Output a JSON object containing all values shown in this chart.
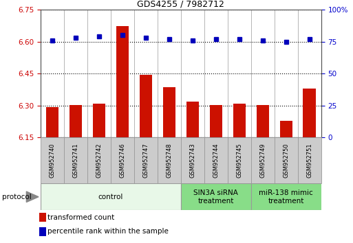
{
  "title": "GDS4255 / 7982712",
  "samples": [
    "GSM952740",
    "GSM952741",
    "GSM952742",
    "GSM952746",
    "GSM952747",
    "GSM952748",
    "GSM952743",
    "GSM952744",
    "GSM952745",
    "GSM952749",
    "GSM952750",
    "GSM952751"
  ],
  "transformed_counts": [
    6.293,
    6.303,
    6.308,
    6.672,
    6.443,
    6.385,
    6.318,
    6.303,
    6.308,
    6.303,
    6.228,
    6.378
  ],
  "percentile_ranks": [
    76,
    78,
    79,
    80,
    78,
    77,
    76,
    77,
    77,
    76,
    75,
    77
  ],
  "groups": [
    {
      "label": "control",
      "start": 0,
      "end": 6,
      "color": "#e8f8e8",
      "border": "#999999"
    },
    {
      "label": "SIN3A siRNA\ntreatment",
      "start": 6,
      "end": 9,
      "color": "#88dd88",
      "border": "#999999"
    },
    {
      "label": "miR-138 mimic\ntreatment",
      "start": 9,
      "end": 12,
      "color": "#88dd88",
      "border": "#999999"
    }
  ],
  "ylim_left": [
    6.15,
    6.75
  ],
  "yticks_left": [
    6.15,
    6.3,
    6.45,
    6.6,
    6.75
  ],
  "ylim_right": [
    0,
    100
  ],
  "yticks_right": [
    0,
    25,
    50,
    75,
    100
  ],
  "yticklabels_right": [
    "0",
    "25",
    "50",
    "75",
    "100%"
  ],
  "bar_color": "#cc1100",
  "dot_color": "#0000bb",
  "bar_width": 0.55,
  "baseline": 6.15,
  "legend_items": [
    {
      "label": "transformed count",
      "color": "#cc1100"
    },
    {
      "label": "percentile rank within the sample",
      "color": "#0000bb"
    }
  ],
  "protocol_label": "protocol",
  "label_color_left": "#cc0000",
  "label_color_right": "#0000cc",
  "sample_box_color": "#cccccc",
  "sample_box_edge": "#999999"
}
